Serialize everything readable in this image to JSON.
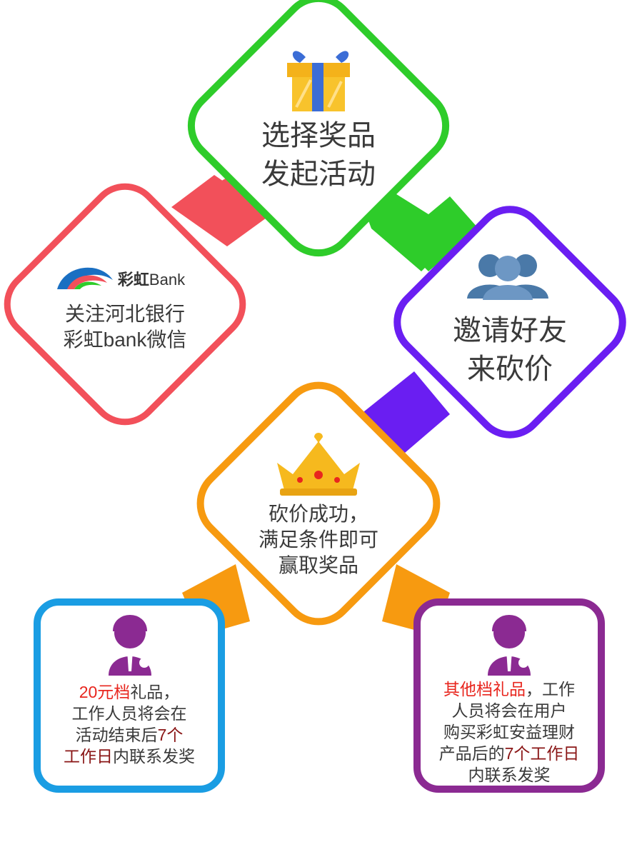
{
  "colors": {
    "green": "#2ecc2a",
    "red": "#f2505a",
    "purple": "#6a1ef2",
    "orange": "#f79a10",
    "blue": "#1a9de3",
    "violet": "#8b2a92"
  },
  "icons": {
    "gift": "gift-icon",
    "logo": "rainbow-bank-logo",
    "users": "users-group-icon",
    "crown": "crown-icon",
    "agent": "customer-service-icon"
  },
  "steps": {
    "choose": {
      "line1": "选择奖品",
      "line2": "发起活动"
    },
    "follow": {
      "logo_text": "彩虹",
      "logo_bank": "Bank",
      "line1": "关注河北银行",
      "line2": "彩虹bank微信"
    },
    "invite": {
      "line1": "邀请好友",
      "line2": "来砍价"
    },
    "success": {
      "line1": "砍价成功，",
      "line2": "满足条件即可",
      "line3": "赢取奖品"
    }
  },
  "prize_20": {
    "highlight": "20元档",
    "line1_rest": "礼品，",
    "line2": "工作人员将会在",
    "line3_pre": "活动结束后",
    "line3_hl": "7个",
    "line4_hl": "工作日",
    "line4_rest": "内联系发奖"
  },
  "prize_other": {
    "highlight": "其他档礼品",
    "line1_rest": "，工作",
    "line2": "人员将会在用户",
    "line3": "购买彩虹安益理财",
    "line4_pre": "产品后的",
    "line4_hl": "7个工作日",
    "line5": "内联系发奖"
  }
}
